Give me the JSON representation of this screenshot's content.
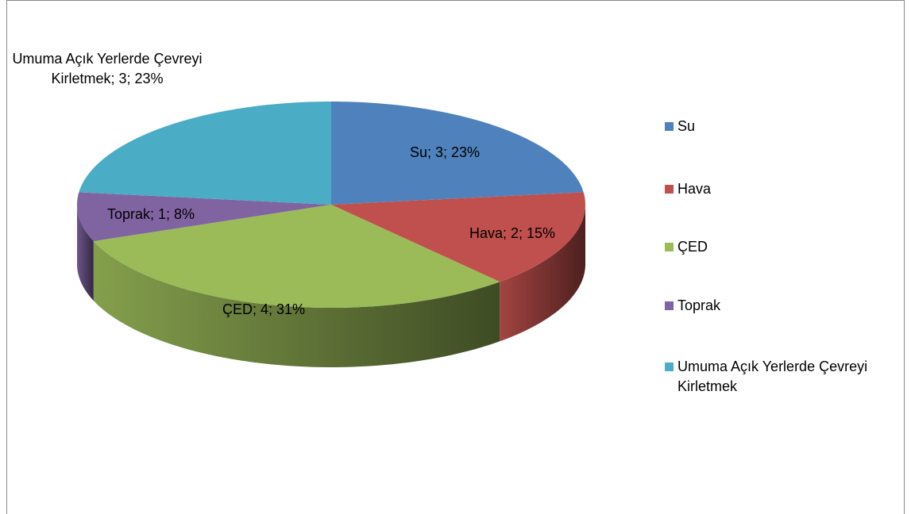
{
  "chart_data": {
    "type": "pie",
    "categories": [
      "Su",
      "Hava",
      "ÇED",
      "Toprak",
      "Umuma Açık Yerlerde Çevreyi Kirletmek"
    ],
    "values": [
      3,
      2,
      4,
      1,
      3
    ],
    "value_labels": [
      "Su; 3; 23%",
      "Hava; 2; 15%",
      "ÇED; 4; 31%",
      "Toprak; 1; 8%",
      "Umuma Açık Yerlerde Çevreyi Kirletmek; 3; 23%"
    ],
    "colors": [
      "#4f81bd",
      "#c0504d",
      "#9bbb59",
      "#8064a2",
      "#4bacc6"
    ],
    "legend": "right"
  }
}
